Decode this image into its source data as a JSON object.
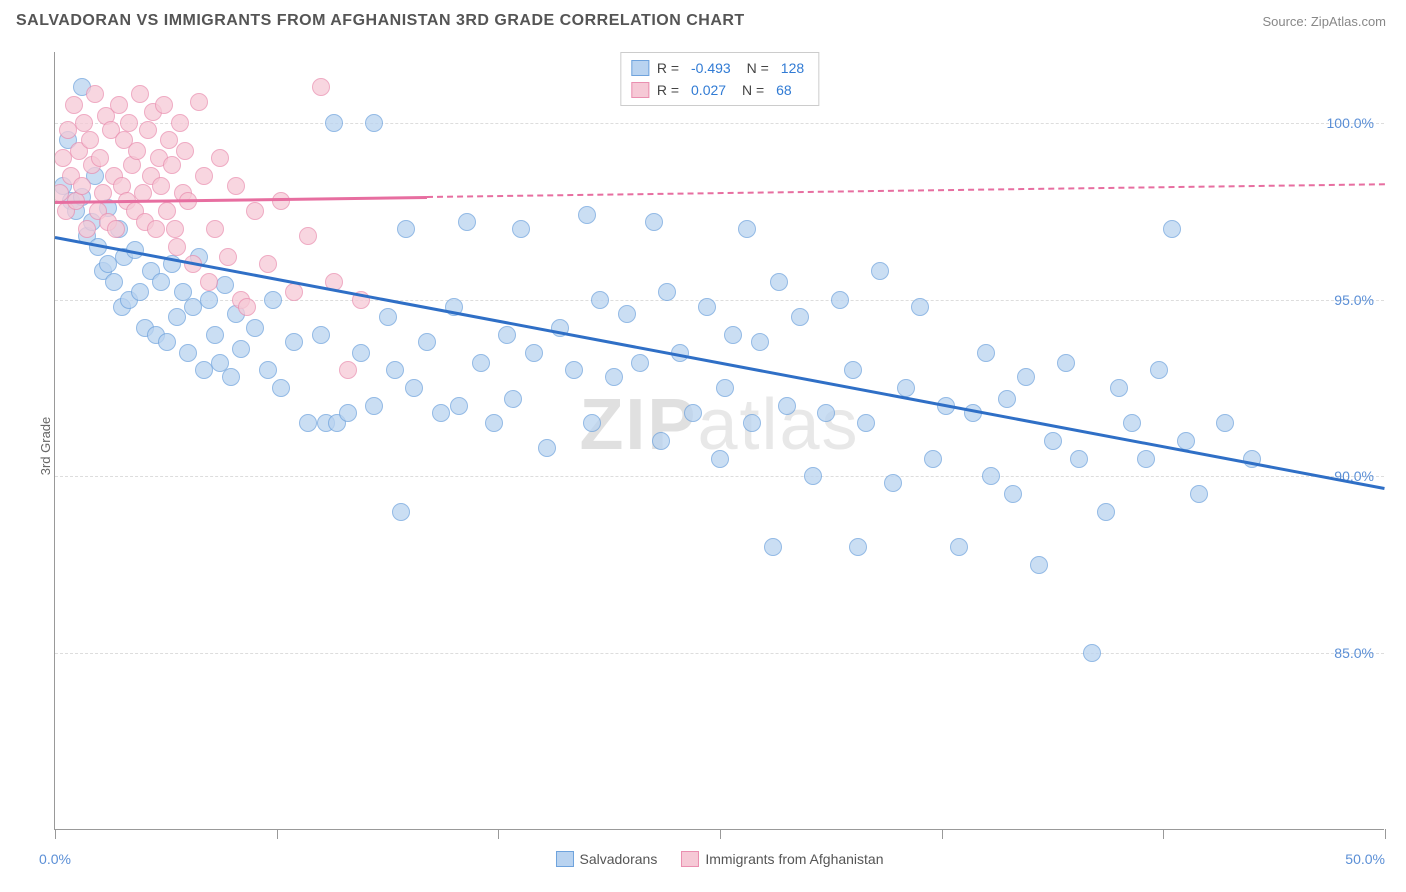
{
  "header": {
    "title": "SALVADORAN VS IMMIGRANTS FROM AFGHANISTAN 3RD GRADE CORRELATION CHART",
    "source": "Source: ZipAtlas.com"
  },
  "chart": {
    "type": "scatter",
    "y_axis_label": "3rd Grade",
    "watermark": "ZIPatlas",
    "xlim": [
      0,
      50
    ],
    "ylim": [
      80,
      102
    ],
    "y_ticks": [
      85.0,
      90.0,
      95.0,
      100.0
    ],
    "y_tick_labels": [
      "85.0%",
      "90.0%",
      "95.0%",
      "100.0%"
    ],
    "x_ticks": [
      0,
      8.33,
      16.67,
      25,
      33.33,
      41.67,
      50
    ],
    "x_tick_labels_shown": {
      "0": "0.0%",
      "50": "50.0%"
    },
    "background_color": "#ffffff",
    "grid_color": "#dddddd",
    "series": [
      {
        "name": "Salvadorans",
        "color_fill": "#b9d3f0",
        "color_stroke": "#6fa3dd",
        "marker_radius": 9,
        "trend": {
          "color": "#2f6fc6",
          "x1": 0,
          "y1": 96.8,
          "x2": 50,
          "y2": 89.7,
          "solid_until_x": 50
        },
        "stats": {
          "R": "-0.493",
          "N": "128"
        },
        "points": [
          [
            0.3,
            98.2
          ],
          [
            0.5,
            99.5
          ],
          [
            0.6,
            97.8
          ],
          [
            0.8,
            97.5
          ],
          [
            1.0,
            97.9
          ],
          [
            1.0,
            101.0
          ],
          [
            1.2,
            96.8
          ],
          [
            1.4,
            97.2
          ],
          [
            1.5,
            98.5
          ],
          [
            1.6,
            96.5
          ],
          [
            1.8,
            95.8
          ],
          [
            2.0,
            97.6
          ],
          [
            2.0,
            96.0
          ],
          [
            2.2,
            95.5
          ],
          [
            2.4,
            97.0
          ],
          [
            2.5,
            94.8
          ],
          [
            2.6,
            96.2
          ],
          [
            2.8,
            95.0
          ],
          [
            3.0,
            96.4
          ],
          [
            3.2,
            95.2
          ],
          [
            3.4,
            94.2
          ],
          [
            3.6,
            95.8
          ],
          [
            3.8,
            94.0
          ],
          [
            4.0,
            95.5
          ],
          [
            4.2,
            93.8
          ],
          [
            4.4,
            96.0
          ],
          [
            4.6,
            94.5
          ],
          [
            4.8,
            95.2
          ],
          [
            5.0,
            93.5
          ],
          [
            5.2,
            94.8
          ],
          [
            5.4,
            96.2
          ],
          [
            5.6,
            93.0
          ],
          [
            5.8,
            95.0
          ],
          [
            6.0,
            94.0
          ],
          [
            6.2,
            93.2
          ],
          [
            6.4,
            95.4
          ],
          [
            6.6,
            92.8
          ],
          [
            6.8,
            94.6
          ],
          [
            7.0,
            93.6
          ],
          [
            7.5,
            94.2
          ],
          [
            8.0,
            93.0
          ],
          [
            8.2,
            95.0
          ],
          [
            8.5,
            92.5
          ],
          [
            9.0,
            93.8
          ],
          [
            9.5,
            91.5
          ],
          [
            10.0,
            94.0
          ],
          [
            10.2,
            91.5
          ],
          [
            10.5,
            100.0
          ],
          [
            10.6,
            91.5
          ],
          [
            11.0,
            91.8
          ],
          [
            11.5,
            93.5
          ],
          [
            12.0,
            92.0
          ],
          [
            12.0,
            100.0
          ],
          [
            12.5,
            94.5
          ],
          [
            12.8,
            93.0
          ],
          [
            13.0,
            89.0
          ],
          [
            13.2,
            97.0
          ],
          [
            13.5,
            92.5
          ],
          [
            14.0,
            93.8
          ],
          [
            14.5,
            91.8
          ],
          [
            15.0,
            94.8
          ],
          [
            15.2,
            92.0
          ],
          [
            15.5,
            97.2
          ],
          [
            16.0,
            93.2
          ],
          [
            16.5,
            91.5
          ],
          [
            17.0,
            94.0
          ],
          [
            17.2,
            92.2
          ],
          [
            17.5,
            97.0
          ],
          [
            18.0,
            93.5
          ],
          [
            18.5,
            90.8
          ],
          [
            19.0,
            94.2
          ],
          [
            19.5,
            93.0
          ],
          [
            20.0,
            97.4
          ],
          [
            20.2,
            91.5
          ],
          [
            20.5,
            95.0
          ],
          [
            21.0,
            92.8
          ],
          [
            21.5,
            94.6
          ],
          [
            22.0,
            93.2
          ],
          [
            22.5,
            97.2
          ],
          [
            22.8,
            91.0
          ],
          [
            23.0,
            95.2
          ],
          [
            23.5,
            93.5
          ],
          [
            24.0,
            91.8
          ],
          [
            24.5,
            94.8
          ],
          [
            25.0,
            90.5
          ],
          [
            25.2,
            92.5
          ],
          [
            25.5,
            94.0
          ],
          [
            26.0,
            97.0
          ],
          [
            26.2,
            91.5
          ],
          [
            26.5,
            93.8
          ],
          [
            27.0,
            88.0
          ],
          [
            27.2,
            95.5
          ],
          [
            27.5,
            92.0
          ],
          [
            28.0,
            94.5
          ],
          [
            28.5,
            90.0
          ],
          [
            29.0,
            91.8
          ],
          [
            29.5,
            95.0
          ],
          [
            30.0,
            93.0
          ],
          [
            30.2,
            88.0
          ],
          [
            30.5,
            91.5
          ],
          [
            31.0,
            95.8
          ],
          [
            31.5,
            89.8
          ],
          [
            32.0,
            92.5
          ],
          [
            32.5,
            94.8
          ],
          [
            33.0,
            90.5
          ],
          [
            33.5,
            92.0
          ],
          [
            34.0,
            88.0
          ],
          [
            34.5,
            91.8
          ],
          [
            35.0,
            93.5
          ],
          [
            35.2,
            90.0
          ],
          [
            35.8,
            92.2
          ],
          [
            36.0,
            89.5
          ],
          [
            36.5,
            92.8
          ],
          [
            37.0,
            87.5
          ],
          [
            37.5,
            91.0
          ],
          [
            38.0,
            93.2
          ],
          [
            38.5,
            90.5
          ],
          [
            39.0,
            85.0
          ],
          [
            39.5,
            89.0
          ],
          [
            40.0,
            92.5
          ],
          [
            40.5,
            91.5
          ],
          [
            41.0,
            90.5
          ],
          [
            41.5,
            93.0
          ],
          [
            42.0,
            97.0
          ],
          [
            42.5,
            91.0
          ],
          [
            43.0,
            89.5
          ],
          [
            44.0,
            91.5
          ],
          [
            45.0,
            90.5
          ]
        ]
      },
      {
        "name": "Immigrants from Afghanistan",
        "color_fill": "#f6c9d6",
        "color_stroke": "#ea8fb0",
        "marker_radius": 9,
        "trend": {
          "color": "#e76ea0",
          "x1": 0,
          "y1": 97.8,
          "x2": 50,
          "y2": 98.3,
          "solid_until_x": 14
        },
        "stats": {
          "R": "0.027",
          "N": "68"
        },
        "points": [
          [
            0.2,
            98.0
          ],
          [
            0.3,
            99.0
          ],
          [
            0.4,
            97.5
          ],
          [
            0.5,
            99.8
          ],
          [
            0.6,
            98.5
          ],
          [
            0.7,
            100.5
          ],
          [
            0.8,
            97.8
          ],
          [
            0.9,
            99.2
          ],
          [
            1.0,
            98.2
          ],
          [
            1.1,
            100.0
          ],
          [
            1.2,
            97.0
          ],
          [
            1.3,
            99.5
          ],
          [
            1.4,
            98.8
          ],
          [
            1.5,
            100.8
          ],
          [
            1.6,
            97.5
          ],
          [
            1.7,
            99.0
          ],
          [
            1.8,
            98.0
          ],
          [
            1.9,
            100.2
          ],
          [
            2.0,
            97.2
          ],
          [
            2.1,
            99.8
          ],
          [
            2.2,
            98.5
          ],
          [
            2.3,
            97.0
          ],
          [
            2.4,
            100.5
          ],
          [
            2.5,
            98.2
          ],
          [
            2.6,
            99.5
          ],
          [
            2.7,
            97.8
          ],
          [
            2.8,
            100.0
          ],
          [
            2.9,
            98.8
          ],
          [
            3.0,
            97.5
          ],
          [
            3.1,
            99.2
          ],
          [
            3.2,
            100.8
          ],
          [
            3.3,
            98.0
          ],
          [
            3.4,
            97.2
          ],
          [
            3.5,
            99.8
          ],
          [
            3.6,
            98.5
          ],
          [
            3.7,
            100.3
          ],
          [
            3.8,
            97.0
          ],
          [
            3.9,
            99.0
          ],
          [
            4.0,
            98.2
          ],
          [
            4.1,
            100.5
          ],
          [
            4.2,
            97.5
          ],
          [
            4.3,
            99.5
          ],
          [
            4.4,
            98.8
          ],
          [
            4.5,
            97.0
          ],
          [
            4.6,
            96.5
          ],
          [
            4.7,
            100.0
          ],
          [
            4.8,
            98.0
          ],
          [
            4.9,
            99.2
          ],
          [
            5.0,
            97.8
          ],
          [
            5.2,
            96.0
          ],
          [
            5.4,
            100.6
          ],
          [
            5.6,
            98.5
          ],
          [
            5.8,
            95.5
          ],
          [
            6.0,
            97.0
          ],
          [
            6.2,
            99.0
          ],
          [
            6.5,
            96.2
          ],
          [
            6.8,
            98.2
          ],
          [
            7.0,
            95.0
          ],
          [
            7.2,
            94.8
          ],
          [
            7.5,
            97.5
          ],
          [
            8.0,
            96.0
          ],
          [
            8.5,
            97.8
          ],
          [
            9.0,
            95.2
          ],
          [
            9.5,
            96.8
          ],
          [
            10.0,
            101.0
          ],
          [
            10.5,
            95.5
          ],
          [
            11.0,
            93.0
          ],
          [
            11.5,
            95.0
          ]
        ]
      }
    ],
    "legend_bottom": [
      {
        "label": "Salvadorans",
        "fill": "#b9d3f0",
        "stroke": "#6fa3dd"
      },
      {
        "label": "Immigrants from Afghanistan",
        "fill": "#f6c9d6",
        "stroke": "#ea8fb0"
      }
    ]
  }
}
